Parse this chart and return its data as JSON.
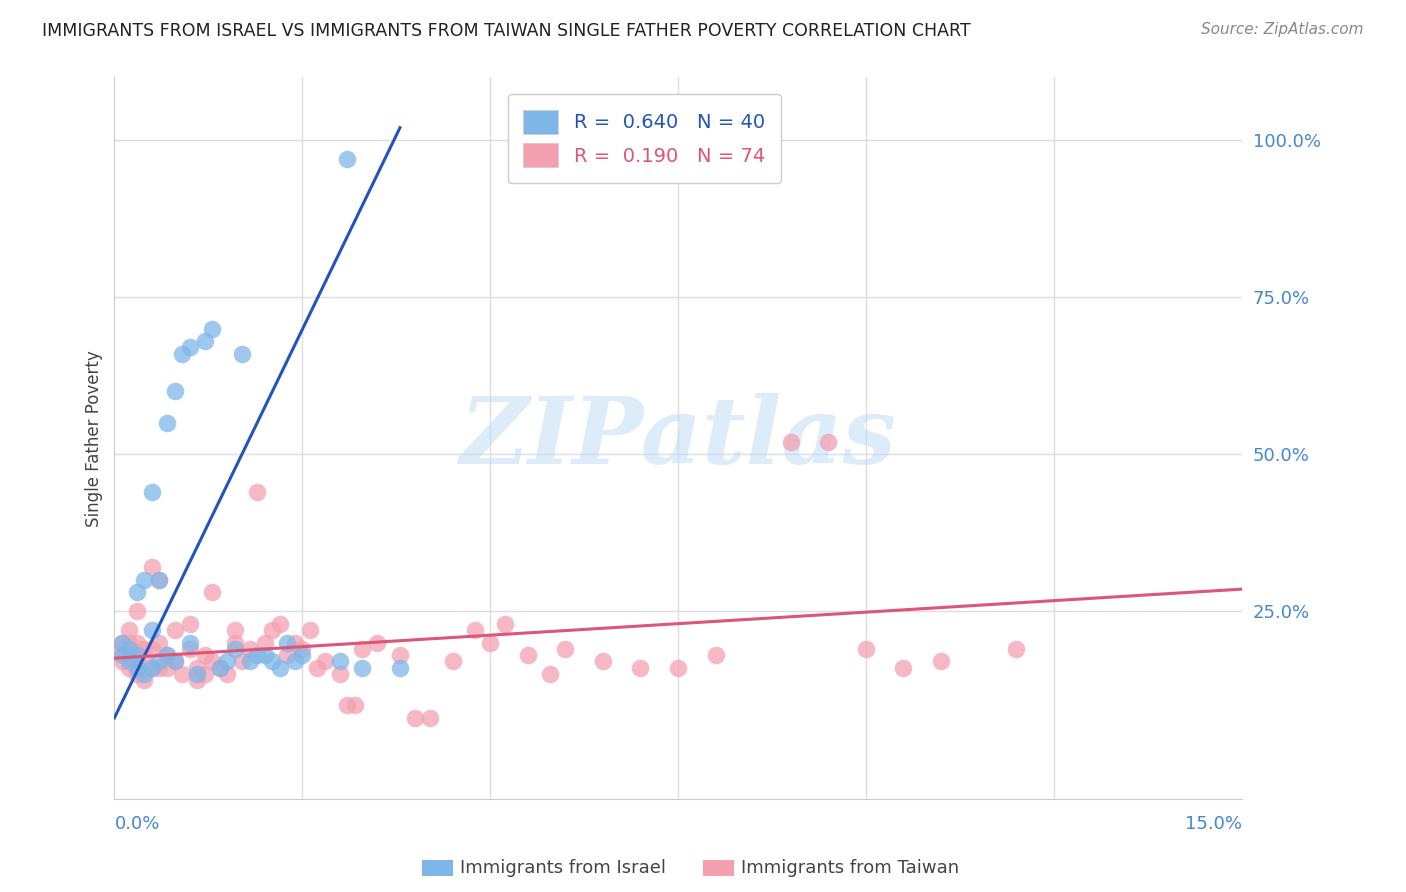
{
  "title": "IMMIGRANTS FROM ISRAEL VS IMMIGRANTS FROM TAIWAN SINGLE FATHER POVERTY CORRELATION CHART",
  "source": "Source: ZipAtlas.com",
  "ylabel": "Single Father Poverty",
  "y_ticks_right": [
    "100.0%",
    "75.0%",
    "50.0%",
    "25.0%"
  ],
  "y_ticks_right_vals": [
    1.0,
    0.75,
    0.5,
    0.25
  ],
  "xlim": [
    0.0,
    0.15
  ],
  "ylim": [
    -0.05,
    1.1
  ],
  "israel_color": "#7EB6E8",
  "taiwan_color": "#F4A0B0",
  "israel_line_color": "#2255BB",
  "taiwan_line_color": "#DD5577",
  "grid_color": "#DDDDE8",
  "background_color": "#FFFFFF",
  "watermark": "ZIPatlas",
  "israel_line_x0": 0.0,
  "israel_line_y0": 0.08,
  "israel_line_x1": 0.038,
  "israel_line_y1": 1.02,
  "taiwan_line_x0": 0.0,
  "taiwan_line_y0": 0.175,
  "taiwan_line_x1": 0.15,
  "taiwan_line_y1": 0.285,
  "israel_x": [
    0.001,
    0.001,
    0.002,
    0.002,
    0.003,
    0.003,
    0.003,
    0.004,
    0.004,
    0.005,
    0.005,
    0.005,
    0.006,
    0.006,
    0.007,
    0.007,
    0.008,
    0.008,
    0.009,
    0.01,
    0.01,
    0.011,
    0.012,
    0.013,
    0.014,
    0.015,
    0.016,
    0.017,
    0.018,
    0.019,
    0.02,
    0.021,
    0.022,
    0.023,
    0.024,
    0.025,
    0.03,
    0.031,
    0.033,
    0.038
  ],
  "israel_y": [
    0.18,
    0.2,
    0.17,
    0.19,
    0.16,
    0.18,
    0.28,
    0.15,
    0.3,
    0.16,
    0.22,
    0.44,
    0.17,
    0.3,
    0.18,
    0.55,
    0.6,
    0.17,
    0.66,
    0.2,
    0.67,
    0.15,
    0.68,
    0.7,
    0.16,
    0.17,
    0.19,
    0.66,
    0.17,
    0.18,
    0.18,
    0.17,
    0.16,
    0.2,
    0.17,
    0.18,
    0.17,
    0.97,
    0.16,
    0.16
  ],
  "taiwan_x": [
    0.001,
    0.001,
    0.001,
    0.002,
    0.002,
    0.002,
    0.002,
    0.003,
    0.003,
    0.003,
    0.003,
    0.004,
    0.004,
    0.004,
    0.005,
    0.005,
    0.005,
    0.006,
    0.006,
    0.006,
    0.007,
    0.007,
    0.008,
    0.008,
    0.009,
    0.01,
    0.01,
    0.011,
    0.011,
    0.012,
    0.012,
    0.013,
    0.013,
    0.014,
    0.015,
    0.016,
    0.016,
    0.017,
    0.018,
    0.019,
    0.02,
    0.021,
    0.022,
    0.023,
    0.024,
    0.025,
    0.026,
    0.027,
    0.028,
    0.03,
    0.031,
    0.032,
    0.033,
    0.035,
    0.038,
    0.04,
    0.042,
    0.045,
    0.048,
    0.05,
    0.052,
    0.055,
    0.058,
    0.06,
    0.065,
    0.07,
    0.075,
    0.08,
    0.09,
    0.095,
    0.1,
    0.105,
    0.11,
    0.12
  ],
  "taiwan_y": [
    0.17,
    0.19,
    0.2,
    0.16,
    0.18,
    0.2,
    0.22,
    0.15,
    0.17,
    0.2,
    0.25,
    0.14,
    0.17,
    0.19,
    0.16,
    0.19,
    0.32,
    0.16,
    0.2,
    0.3,
    0.16,
    0.18,
    0.17,
    0.22,
    0.15,
    0.19,
    0.23,
    0.14,
    0.16,
    0.15,
    0.18,
    0.17,
    0.28,
    0.16,
    0.15,
    0.2,
    0.22,
    0.17,
    0.19,
    0.44,
    0.2,
    0.22,
    0.23,
    0.18,
    0.2,
    0.19,
    0.22,
    0.16,
    0.17,
    0.15,
    0.1,
    0.1,
    0.19,
    0.2,
    0.18,
    0.08,
    0.08,
    0.17,
    0.22,
    0.2,
    0.23,
    0.18,
    0.15,
    0.19,
    0.17,
    0.16,
    0.16,
    0.18,
    0.52,
    0.52,
    0.19,
    0.16,
    0.17,
    0.19
  ]
}
